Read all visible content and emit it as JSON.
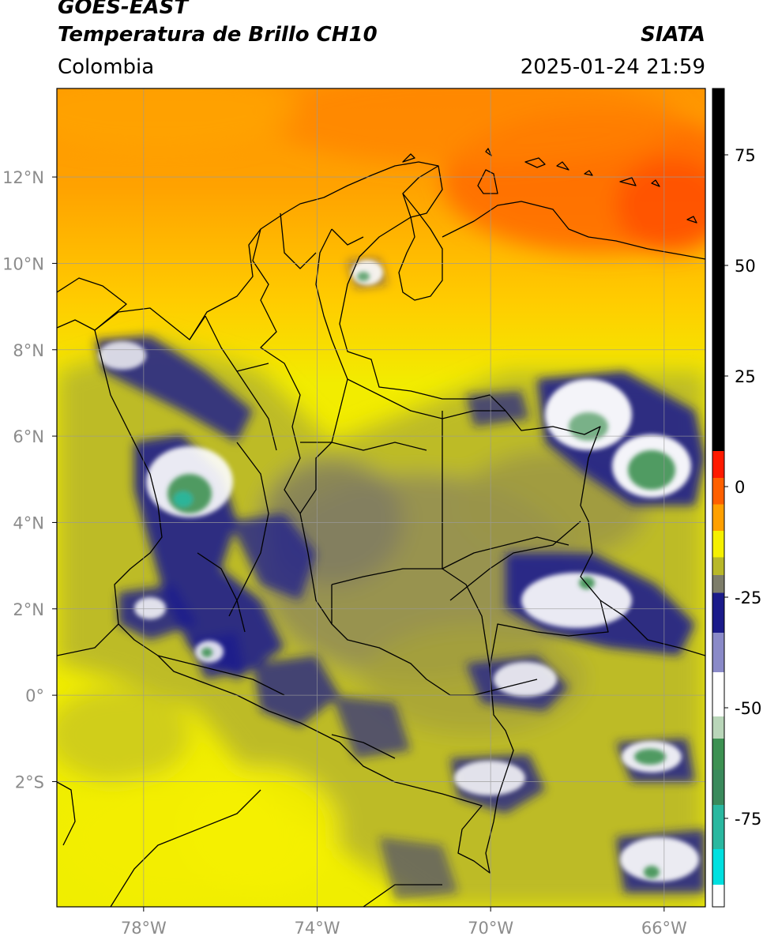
{
  "header": {
    "title_line1": "GOES-EAST",
    "title_line2": "Temperatura de Brillo CH10",
    "source": "SIATA",
    "region": "Colombia",
    "timestamp": "2025-01-24 21:59"
  },
  "map": {
    "extent": {
      "lon_min": -80,
      "lon_max": -65.05,
      "lat_min": -4.9,
      "lat_max": 14.05
    },
    "lon_ticks": [
      {
        "value": -78,
        "label": "78°W"
      },
      {
        "value": -74,
        "label": "74°W"
      },
      {
        "value": -70,
        "label": "70°W"
      },
      {
        "value": -66,
        "label": "66°W"
      }
    ],
    "lat_ticks": [
      {
        "value": 12,
        "label": "12°N"
      },
      {
        "value": 10,
        "label": "10°N"
      },
      {
        "value": 8,
        "label": "8°N"
      },
      {
        "value": 6,
        "label": "6°N"
      },
      {
        "value": 4,
        "label": "4°N"
      },
      {
        "value": 2,
        "label": "2°N"
      },
      {
        "value": 0,
        "label": "0°"
      },
      {
        "value": -2,
        "label": "2°S"
      }
    ],
    "grid": true
  },
  "colorbar": {
    "range": [
      -95,
      90
    ],
    "ticks": [
      {
        "value": 75,
        "label": "75"
      },
      {
        "value": 50,
        "label": "50"
      },
      {
        "value": 25,
        "label": "25"
      },
      {
        "value": 0,
        "label": "0"
      },
      {
        "value": -25,
        "label": "-25"
      },
      {
        "value": -50,
        "label": "-50"
      },
      {
        "value": -75,
        "label": "-75"
      }
    ]
  },
  "colors": {
    "warm": "#ff6a00",
    "orange": "#ff9d00",
    "yellow": "#f5f000",
    "olive": "#b8b828",
    "gray": "#7d7d6a",
    "navy": "#1b1b8a",
    "white": "#ffffff",
    "green": "#3d9152",
    "teal": "#2ab8a0",
    "cyan": "#00e0e0",
    "black": "#000000"
  }
}
